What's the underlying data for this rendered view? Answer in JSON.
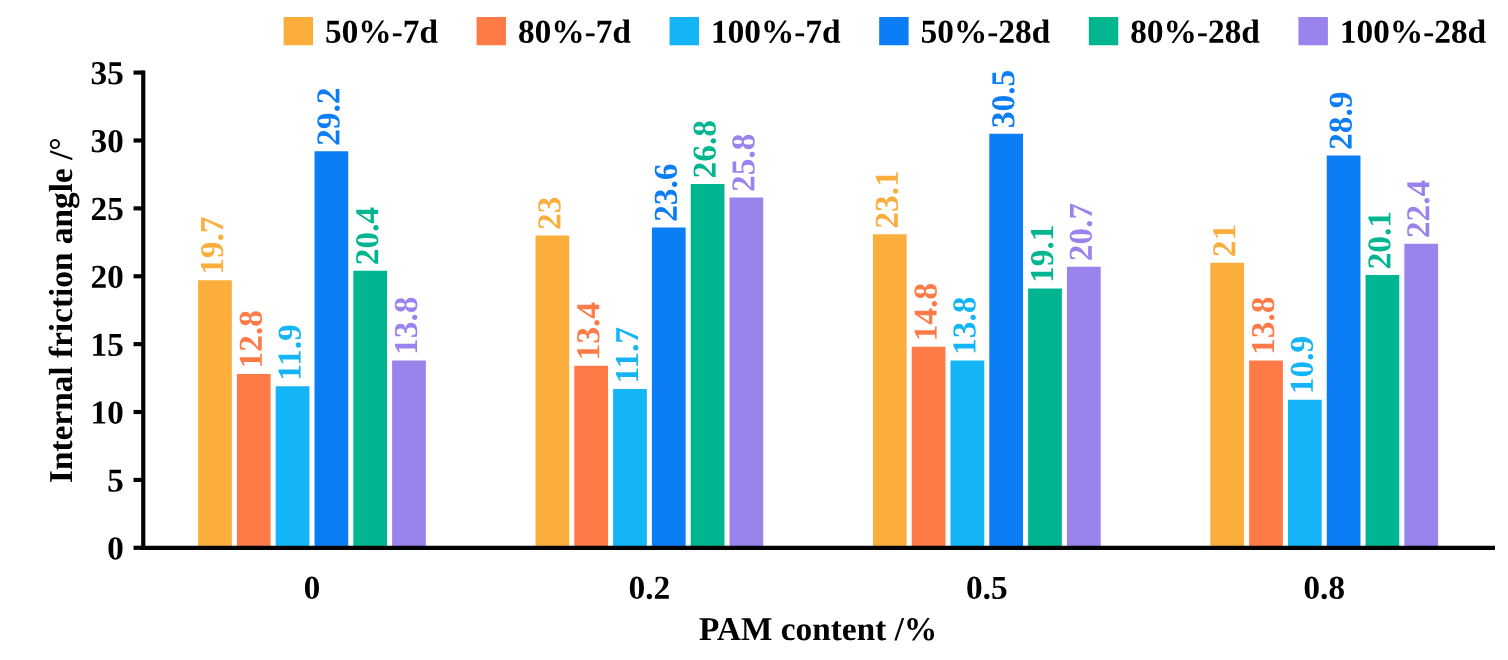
{
  "chart_data": {
    "type": "bar",
    "xlabel": "PAM content /%",
    "ylabel": "Internal friction angle /°",
    "categories": [
      "0",
      "0.2",
      "0.5",
      "0.8"
    ],
    "series": [
      {
        "name": "50%-7d",
        "color": "#fbae3c",
        "values": [
          19.7,
          23,
          23.1,
          21
        ]
      },
      {
        "name": "80%-7d",
        "color": "#fe7a47",
        "values": [
          12.8,
          13.4,
          14.8,
          13.8
        ]
      },
      {
        "name": "100%-7d",
        "color": "#13b5f7",
        "values": [
          11.9,
          11.7,
          13.8,
          10.9
        ]
      },
      {
        "name": "50%-28d",
        "color": "#0c7ef5",
        "values": [
          29.2,
          23.6,
          30.5,
          28.9
        ]
      },
      {
        "name": "80%-28d",
        "color": "#00b58f",
        "values": [
          20.4,
          26.8,
          19.1,
          20.1
        ]
      },
      {
        "name": "100%-28d",
        "color": "#9b83ee",
        "values": [
          13.8,
          25.8,
          20.7,
          22.4
        ]
      }
    ],
    "ylim": [
      0,
      35
    ],
    "yticks": [
      0,
      5,
      10,
      15,
      20,
      25,
      30,
      35
    ],
    "data_labels": true,
    "legend": "top",
    "grid": false
  }
}
